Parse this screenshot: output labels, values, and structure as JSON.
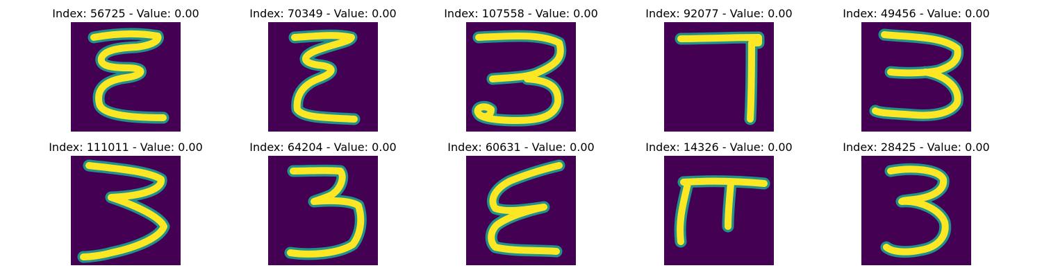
{
  "colors": {
    "background": "#440154",
    "edge": "#21918c",
    "stroke": "#fde725"
  },
  "samples": [
    {
      "title": "Index: 56725 - Value: 0.00",
      "glyph": "epsilon-a"
    },
    {
      "title": "Index: 70349 - Value: 0.00",
      "glyph": "epsilon-b"
    },
    {
      "title": "Index: 107558 - Value: 0.00",
      "glyph": "three-a"
    },
    {
      "title": "Index: 92077 - Value: 0.00",
      "glyph": "seven"
    },
    {
      "title": "Index: 49456 - Value: 0.00",
      "glyph": "three-b"
    },
    {
      "title": "Index: 111011 - Value: 0.00",
      "glyph": "three-c"
    },
    {
      "title": "Index: 64204 - Value: 0.00",
      "glyph": "three-d"
    },
    {
      "title": "Index: 60631 - Value: 0.00",
      "glyph": "epsilon-c"
    },
    {
      "title": "Index: 14326 - Value: 0.00",
      "glyph": "pi"
    },
    {
      "title": "Index: 28425 - Value: 0.00",
      "glyph": "three-e"
    }
  ]
}
